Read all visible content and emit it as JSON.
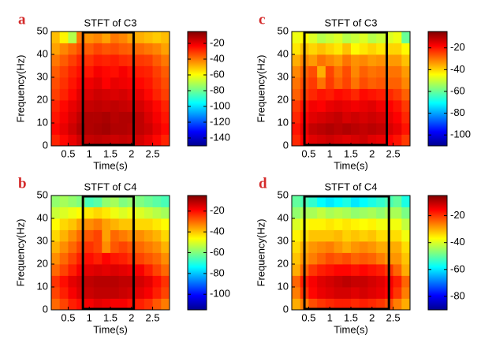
{
  "chart_data": [
    {
      "type": "heatmap",
      "panel_label": "a",
      "title": "STFT of C3",
      "xlabel": "Time(s)",
      "ylabel": "Frequency(Hz)",
      "x": [
        0.2,
        0.4,
        0.6,
        0.8,
        1.0,
        1.2,
        1.4,
        1.6,
        1.8,
        2.0,
        2.2,
        2.4,
        2.6,
        2.8
      ],
      "y": [
        2.5,
        7.5,
        12.5,
        17.5,
        22.5,
        27.5,
        32.5,
        37.5,
        42.5,
        47.5
      ],
      "z": [
        [
          -28,
          -24,
          -20,
          -16,
          -15,
          -14,
          -15,
          -16,
          -15,
          -16,
          -17,
          -20,
          -24,
          -28
        ],
        [
          -24,
          -20,
          -16,
          -12,
          -12,
          -11,
          -10,
          -12,
          -12,
          -13,
          -14,
          -16,
          -20,
          -24
        ],
        [
          -26,
          -22,
          -18,
          -14,
          -12,
          -12,
          -11,
          -13,
          -12,
          -12,
          -14,
          -18,
          -22,
          -26
        ],
        [
          -28,
          -24,
          -20,
          -17,
          -15,
          -14,
          -15,
          -14,
          -15,
          -16,
          -17,
          -20,
          -24,
          -28
        ],
        [
          -32,
          -28,
          -24,
          -19,
          -18,
          -16,
          -17,
          -18,
          -17,
          -19,
          -20,
          -24,
          -28,
          -32
        ],
        [
          -34,
          -30,
          -26,
          -22,
          -21,
          -19,
          -23,
          -20,
          -21,
          -22,
          -24,
          -26,
          -30,
          -34
        ],
        [
          -36,
          -32,
          -28,
          -25,
          -26,
          -22,
          -24,
          -25,
          -22,
          -25,
          -27,
          -28,
          -32,
          -36
        ],
        [
          -40,
          -36,
          -32,
          -28,
          -30,
          -27,
          -28,
          -27,
          -29,
          -30,
          -31,
          -32,
          -36,
          -40
        ],
        [
          -46,
          -42,
          -38,
          -34,
          -36,
          -33,
          -35,
          -34,
          -36,
          -37,
          -38,
          -40,
          -42,
          -46
        ],
        [
          -50,
          -58,
          -70,
          -40,
          -44,
          -42,
          -46,
          -40,
          -42,
          -46,
          -48,
          -50,
          -52,
          -50
        ]
      ],
      "xlim": [
        0.1,
        2.9
      ],
      "ylim": [
        0,
        50
      ],
      "xticks": [
        0.5,
        1,
        1.5,
        2,
        2.5
      ],
      "yticks": [
        0,
        10,
        20,
        30,
        40,
        50
      ],
      "zlim": [
        -150,
        -5
      ],
      "zticks": [
        -140,
        -120,
        -100,
        -80,
        -60,
        -40,
        -20
      ],
      "colormap": "jet",
      "box": [
        0.85,
        2.05
      ]
    },
    {
      "type": "heatmap",
      "panel_label": "b",
      "title": "STFT of C4",
      "xlabel": "Time(s)",
      "ylabel": "Frequency(Hz)",
      "x": [
        0.2,
        0.4,
        0.6,
        0.8,
        1.0,
        1.2,
        1.4,
        1.6,
        1.8,
        2.0,
        2.2,
        2.4,
        2.6,
        2.8
      ],
      "y": [
        2.5,
        7.5,
        12.5,
        17.5,
        22.5,
        27.5,
        32.5,
        37.5,
        42.5,
        47.5
      ],
      "z": [
        [
          -30,
          -26,
          -22,
          -20,
          -18,
          -16,
          -17,
          -18,
          -18,
          -20,
          -22,
          -24,
          -28,
          -32
        ],
        [
          -26,
          -22,
          -18,
          -15,
          -13,
          -12,
          -12,
          -12,
          -13,
          -14,
          -16,
          -18,
          -22,
          -26
        ],
        [
          -24,
          -20,
          -16,
          -14,
          -12,
          -11,
          -11,
          -11,
          -12,
          -12,
          -14,
          -16,
          -20,
          -24
        ],
        [
          -30,
          -26,
          -22,
          -18,
          -16,
          -15,
          -16,
          -15,
          -16,
          -17,
          -18,
          -22,
          -26,
          -30
        ],
        [
          -34,
          -30,
          -26,
          -22,
          -20,
          -22,
          -19,
          -21,
          -22,
          -24,
          -26,
          -28,
          -30,
          -34
        ],
        [
          -38,
          -34,
          -30,
          -26,
          -24,
          -26,
          -34,
          -28,
          -26,
          -28,
          -30,
          -32,
          -34,
          -38
        ],
        [
          -42,
          -38,
          -34,
          -30,
          -28,
          -26,
          -36,
          -30,
          -32,
          -34,
          -34,
          -36,
          -38,
          -42
        ],
        [
          -46,
          -42,
          -40,
          -36,
          -34,
          -32,
          -36,
          -38,
          -40,
          -40,
          -42,
          -42,
          -44,
          -46
        ],
        [
          -52,
          -50,
          -48,
          -46,
          -44,
          -42,
          -44,
          -48,
          -50,
          -48,
          -50,
          -52,
          -54,
          -56
        ],
        [
          -58,
          -56,
          -58,
          -60,
          -66,
          -64,
          -58,
          -56,
          -60,
          -58,
          -60,
          -62,
          -64,
          -66
        ]
      ],
      "xlim": [
        0.1,
        2.9
      ],
      "ylim": [
        0,
        50
      ],
      "xticks": [
        0.5,
        1,
        1.5,
        2,
        2.5
      ],
      "yticks": [
        0,
        10,
        20,
        30,
        40,
        50
      ],
      "zlim": [
        -115,
        -5
      ],
      "zticks": [
        -100,
        -80,
        -60,
        -40,
        -20
      ],
      "colormap": "jet",
      "box": [
        0.85,
        2.05
      ]
    },
    {
      "type": "heatmap",
      "panel_label": "c",
      "title": "STFT of C3",
      "xlabel": "Time(s)",
      "ylabel": "Frequency(Hz)",
      "x": [
        0.2,
        0.4,
        0.6,
        0.8,
        1.0,
        1.2,
        1.4,
        1.6,
        1.8,
        2.0,
        2.2,
        2.4,
        2.6,
        2.8
      ],
      "y": [
        2.5,
        7.5,
        12.5,
        17.5,
        22.5,
        27.5,
        32.5,
        37.5,
        42.5,
        47.5
      ],
      "z": [
        [
          -22,
          -18,
          -15,
          -14,
          -13,
          -14,
          -15,
          -14,
          -13,
          -15,
          -16,
          -18,
          -20,
          -24
        ],
        [
          -20,
          -16,
          -12,
          -11,
          -10,
          -11,
          -10,
          -11,
          -12,
          -11,
          -12,
          -14,
          -16,
          -20
        ],
        [
          -22,
          -18,
          -15,
          -14,
          -13,
          -12,
          -14,
          -13,
          -14,
          -13,
          -14,
          -16,
          -18,
          -22
        ],
        [
          -24,
          -20,
          -17,
          -18,
          -16,
          -15,
          -16,
          -17,
          -16,
          -15,
          -17,
          -18,
          -20,
          -24
        ],
        [
          -28,
          -24,
          -22,
          -20,
          -21,
          -19,
          -20,
          -22,
          -19,
          -20,
          -21,
          -22,
          -24,
          -28
        ],
        [
          -30,
          -26,
          -24,
          -30,
          -24,
          -28,
          -25,
          -30,
          -26,
          -28,
          -27,
          -28,
          -28,
          -32
        ],
        [
          -32,
          -28,
          -26,
          -36,
          -25,
          -30,
          -26,
          -32,
          -28,
          -30,
          -29,
          -30,
          -30,
          -34
        ],
        [
          -36,
          -32,
          -34,
          -30,
          -32,
          -34,
          -30,
          -33,
          -32,
          -34,
          -33,
          -34,
          -34,
          -38
        ],
        [
          -42,
          -38,
          -40,
          -38,
          -40,
          -42,
          -38,
          -44,
          -42,
          -40,
          -42,
          -40,
          -40,
          -44
        ],
        [
          -46,
          -44,
          -48,
          -52,
          -50,
          -48,
          -52,
          -50,
          -48,
          -52,
          -50,
          -48,
          -46,
          -60
        ]
      ],
      "xlim": [
        0.1,
        2.9
      ],
      "ylim": [
        0,
        50
      ],
      "xticks": [
        0.5,
        1,
        1.5,
        2,
        2.5
      ],
      "yticks": [
        0,
        10,
        20,
        30,
        40,
        50
      ],
      "zlim": [
        -110,
        -5
      ],
      "zticks": [
        -100,
        -80,
        -60,
        -40,
        -20
      ],
      "colormap": "jet",
      "box": [
        0.4,
        2.35
      ]
    },
    {
      "type": "heatmap",
      "panel_label": "d",
      "title": "STFT of C4",
      "xlabel": "Time(s)",
      "ylabel": "Frequency(Hz)",
      "x": [
        0.2,
        0.4,
        0.6,
        0.8,
        1.0,
        1.2,
        1.4,
        1.6,
        1.8,
        2.0,
        2.2,
        2.4,
        2.6,
        2.8
      ],
      "y": [
        2.5,
        7.5,
        12.5,
        17.5,
        22.5,
        27.5,
        32.5,
        37.5,
        42.5,
        47.5
      ],
      "z": [
        [
          -30,
          -26,
          -22,
          -20,
          -19,
          -18,
          -18,
          -19,
          -18,
          -19,
          -20,
          -22,
          -26,
          -30
        ],
        [
          -26,
          -20,
          -16,
          -14,
          -13,
          -12,
          -12,
          -13,
          -12,
          -13,
          -14,
          -16,
          -20,
          -26
        ],
        [
          -24,
          -18,
          -15,
          -13,
          -12,
          -11,
          -10,
          -11,
          -11,
          -12,
          -13,
          -15,
          -18,
          -24
        ],
        [
          -30,
          -24,
          -20,
          -18,
          -17,
          -16,
          -16,
          -17,
          -16,
          -17,
          -18,
          -20,
          -24,
          -30
        ],
        [
          -32,
          -28,
          -26,
          -24,
          -22,
          -23,
          -22,
          -24,
          -23,
          -24,
          -26,
          -28,
          -28,
          -32
        ],
        [
          -34,
          -30,
          -28,
          -27,
          -26,
          -28,
          -30,
          -28,
          -27,
          -28,
          -30,
          -30,
          -30,
          -34
        ],
        [
          -36,
          -34,
          -32,
          -32,
          -32,
          -31,
          -33,
          -32,
          -33,
          -32,
          -34,
          -34,
          -34,
          -38
        ],
        [
          -40,
          -38,
          -36,
          -36,
          -35,
          -36,
          -35,
          -36,
          -37,
          -36,
          -38,
          -38,
          -38,
          -42
        ],
        [
          -46,
          -44,
          -44,
          -42,
          -44,
          -43,
          -44,
          -46,
          -45,
          -44,
          -46,
          -44,
          -44,
          -48
        ],
        [
          -50,
          -52,
          -54,
          -58,
          -60,
          -58,
          -56,
          -60,
          -58,
          -56,
          -54,
          -52,
          -50,
          -56
        ]
      ],
      "xlim": [
        0.1,
        2.9
      ],
      "ylim": [
        0,
        50
      ],
      "xticks": [
        0.5,
        1,
        1.5,
        2,
        2.5
      ],
      "yticks": [
        0,
        10,
        20,
        30,
        40,
        50
      ],
      "zlim": [
        -90,
        -5
      ],
      "zticks": [
        -80,
        -60,
        -40,
        -20
      ],
      "colormap": "jet",
      "box": [
        0.4,
        2.4
      ]
    }
  ]
}
